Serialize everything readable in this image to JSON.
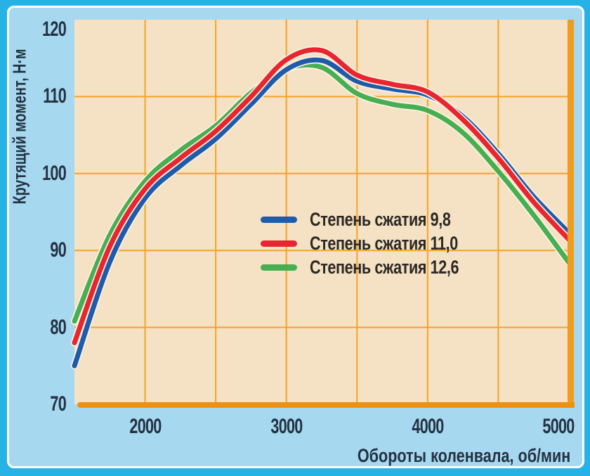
{
  "frame": {
    "outer_border_color": "#27b2e6",
    "panel_background": "#a6d9f0",
    "panel_border_color": "#ffffff"
  },
  "chart_data": {
    "type": "line",
    "title": "",
    "xlabel": "Обороты коленвала, об/мин",
    "ylabel": "Крутящий момент, Н·м",
    "xlim": [
      1500,
      5000
    ],
    "ylim": [
      70,
      120
    ],
    "x_ticks": [
      2000,
      3000,
      4000,
      5000
    ],
    "y_ticks": [
      70,
      80,
      90,
      100,
      110,
      120
    ],
    "grid": true,
    "grid_step_x_rpm": 500,
    "grid_step_y_nm": 10,
    "grid_color": "#f4a329",
    "axis_color": "#ef9110",
    "plot_background": "#f5e1c3",
    "halo_color": "#fdf3e2",
    "legend_position": "center",
    "x": [
      1500,
      1750,
      2000,
      2250,
      2500,
      2750,
      3000,
      3250,
      3500,
      3750,
      4000,
      4250,
      4500,
      4750,
      5000
    ],
    "series": [
      {
        "name": "Степень сжатия 9,8",
        "color": "#1e5bab",
        "values": [
          75.0,
          88.5,
          96.8,
          101.0,
          104.5,
          109.0,
          113.5,
          114.7,
          112.0,
          111.0,
          110.2,
          107.4,
          102.6,
          97.0,
          92.3
        ]
      },
      {
        "name": "Степень сжатия 11,0",
        "color": "#e72630",
        "values": [
          78.0,
          90.5,
          98.0,
          102.0,
          105.5,
          110.0,
          114.8,
          116.0,
          112.8,
          111.6,
          110.6,
          107.0,
          102.0,
          96.3,
          91.4
        ]
      },
      {
        "name": "Степень сжатия 12,6",
        "color": "#48ae52",
        "values": [
          80.8,
          92.0,
          99.0,
          103.0,
          106.2,
          110.5,
          113.6,
          113.8,
          110.4,
          109.0,
          108.2,
          105.3,
          100.3,
          94.6,
          88.4
        ]
      }
    ]
  }
}
